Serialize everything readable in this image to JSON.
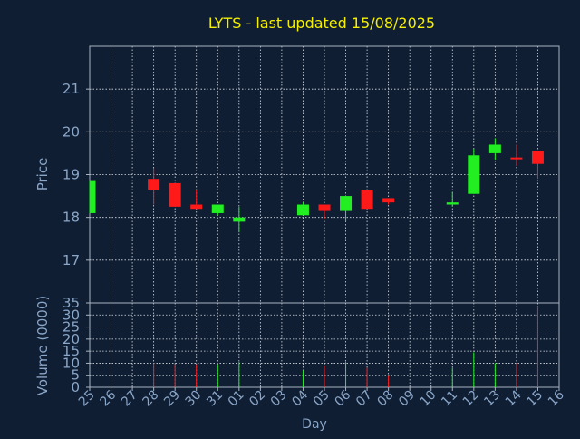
{
  "title": "LYTS - last updated 15/08/2025",
  "colors": {
    "background": "#0f1e33",
    "title": "#f5f000",
    "axis_text": "#8aa6c8",
    "axis_line": "#aab4c0",
    "grid": "#d8dde4",
    "up": "#22ee22",
    "down": "#ff1a1a"
  },
  "chart_data": [
    {
      "type": "candlestick",
      "ylabel": "Price",
      "ylim": [
        16,
        22
      ],
      "yticks": [
        17,
        18,
        19,
        20,
        21
      ],
      "grid": true,
      "categories": [
        "25",
        "26",
        "27",
        "28",
        "29",
        "30",
        "31",
        "01",
        "02",
        "03",
        "04",
        "05",
        "06",
        "07",
        "08",
        "09",
        "10",
        "11",
        "12",
        "13",
        "14",
        "15",
        "16"
      ],
      "candles": [
        {
          "day": "25",
          "open": 18.1,
          "high": 18.85,
          "low": 18.1,
          "close": 18.85
        },
        {
          "day": "28",
          "open": 18.9,
          "high": 19.15,
          "low": 18.3,
          "close": 18.65
        },
        {
          "day": "29",
          "open": 18.8,
          "high": 18.8,
          "low": 18.25,
          "close": 18.25
        },
        {
          "day": "30",
          "open": 18.3,
          "high": 18.65,
          "low": 18.2,
          "close": 18.2
        },
        {
          "day": "31",
          "open": 18.1,
          "high": 18.3,
          "low": 18.05,
          "close": 18.3
        },
        {
          "day": "01",
          "open": 17.9,
          "high": 18.25,
          "low": 17.65,
          "close": 18.0
        },
        {
          "day": "04",
          "open": 18.05,
          "high": 18.35,
          "low": 18.05,
          "close": 18.3
        },
        {
          "day": "05",
          "open": 18.3,
          "high": 18.3,
          "low": 17.95,
          "close": 18.15
        },
        {
          "day": "06",
          "open": 18.15,
          "high": 18.5,
          "low": 17.9,
          "close": 18.5
        },
        {
          "day": "07",
          "open": 18.65,
          "high": 18.65,
          "low": 18.2,
          "close": 18.2
        },
        {
          "day": "08",
          "open": 18.45,
          "high": 18.45,
          "low": 18.3,
          "close": 18.35
        },
        {
          "day": "11",
          "open": 18.3,
          "high": 18.6,
          "low": 18.25,
          "close": 18.35
        },
        {
          "day": "12",
          "open": 18.55,
          "high": 19.6,
          "low": 18.55,
          "close": 19.45
        },
        {
          "day": "13",
          "open": 19.5,
          "high": 19.85,
          "low": 19.35,
          "close": 19.7
        },
        {
          "day": "14",
          "open": 19.4,
          "high": 19.7,
          "low": 19.2,
          "close": 19.38
        },
        {
          "day": "15",
          "open": 19.55,
          "high": 19.55,
          "low": 18.9,
          "close": 19.25
        }
      ]
    },
    {
      "type": "bar",
      "ylabel": "Volume (0000)",
      "xlabel": "Day",
      "ylim": [
        0,
        35
      ],
      "yticks": [
        0,
        5,
        10,
        15,
        20,
        25,
        30,
        35
      ],
      "grid": true,
      "categories": [
        "25",
        "26",
        "27",
        "28",
        "29",
        "30",
        "31",
        "01",
        "02",
        "03",
        "04",
        "05",
        "06",
        "07",
        "08",
        "09",
        "10",
        "11",
        "12",
        "13",
        "14",
        "15",
        "16"
      ],
      "bars": [
        {
          "day": "25",
          "value": 0,
          "direction": "up"
        },
        {
          "day": "28",
          "value": 10,
          "direction": "down"
        },
        {
          "day": "29",
          "value": 9.5,
          "direction": "down"
        },
        {
          "day": "30",
          "value": 9.5,
          "direction": "down"
        },
        {
          "day": "31",
          "value": 9.5,
          "direction": "up"
        },
        {
          "day": "01",
          "value": 10.5,
          "direction": "up"
        },
        {
          "day": "04",
          "value": 7,
          "direction": "up"
        },
        {
          "day": "05",
          "value": 9,
          "direction": "down"
        },
        {
          "day": "06",
          "value": 10.5,
          "direction": "up"
        },
        {
          "day": "07",
          "value": 8,
          "direction": "down"
        },
        {
          "day": "08",
          "value": 5,
          "direction": "down"
        },
        {
          "day": "11",
          "value": 8,
          "direction": "up"
        },
        {
          "day": "12",
          "value": 14.5,
          "direction": "up"
        },
        {
          "day": "13",
          "value": 10,
          "direction": "up"
        },
        {
          "day": "14",
          "value": 10,
          "direction": "down"
        },
        {
          "day": "15",
          "value": 33.5,
          "direction": "down"
        }
      ]
    }
  ]
}
